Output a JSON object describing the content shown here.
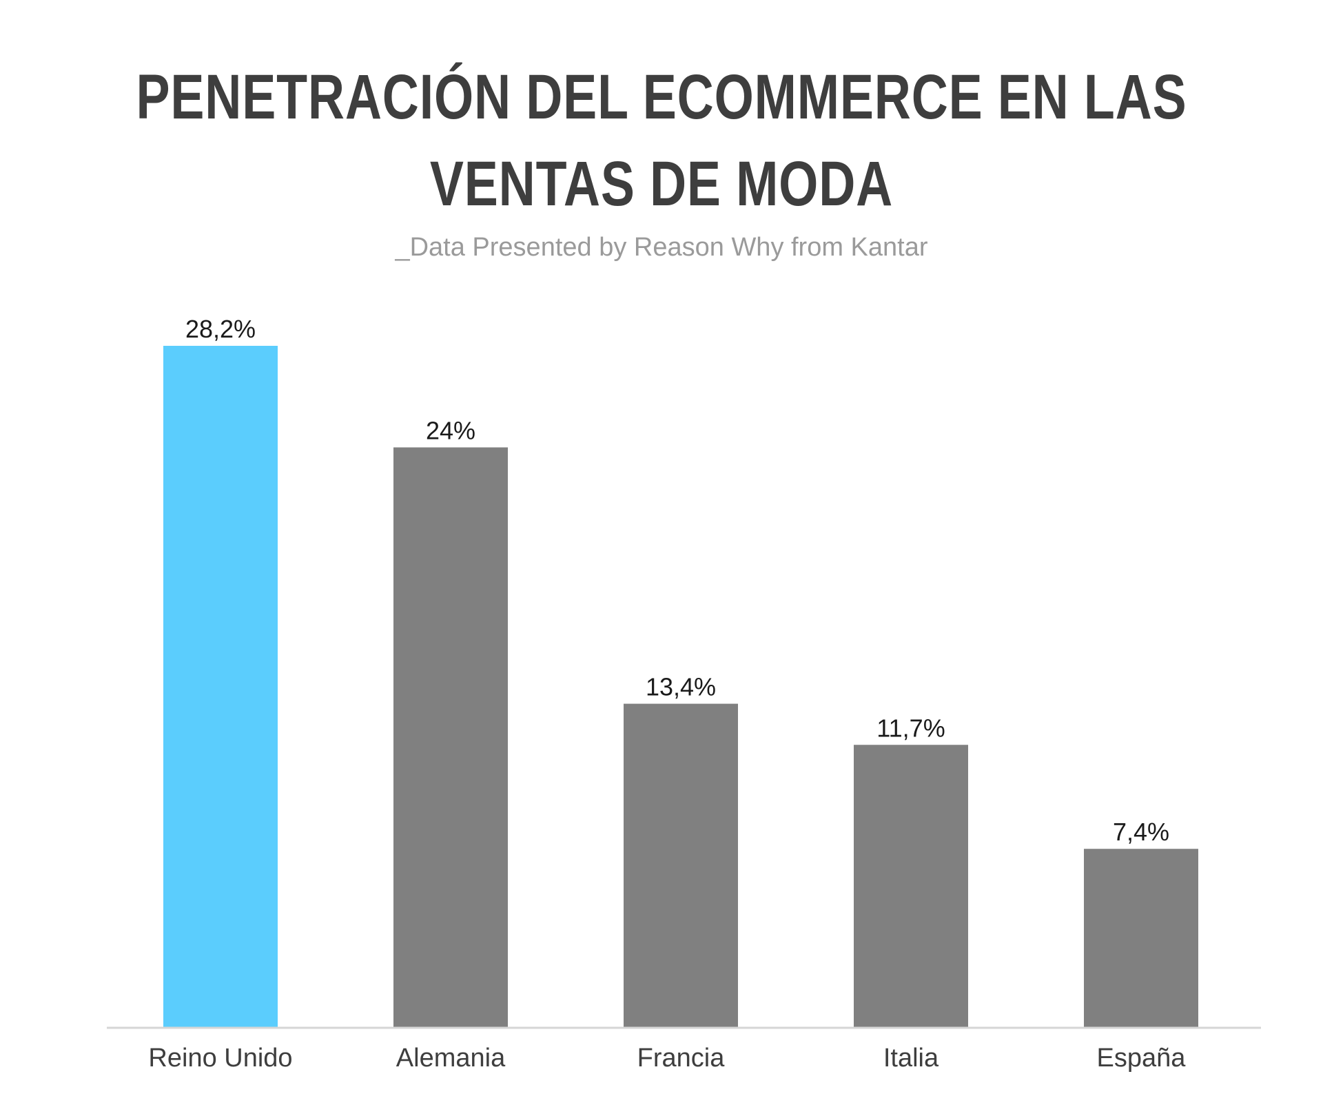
{
  "header": {
    "title_line1": "PENETRACIÓN DEL ECOMMERCE EN LAS",
    "title_line2": "VENTAS DE MODA",
    "subtitle": "_Data Presented by Reason Why from Kantar"
  },
  "colors": {
    "highlight": "#5bcdfd",
    "bar": "#808080",
    "baseline": "#d6d6d6",
    "title": "#3e3e3e",
    "subtitle": "#9a9a9a"
  },
  "chart_data": {
    "type": "bar",
    "title": "PENETRACIÓN DEL ECOMMERCE EN LAS VENTAS DE MODA",
    "subtitle": "_Data Presented by Reason Why from Kantar",
    "categories": [
      "Reino Unido",
      "Alemania",
      "Francia",
      "Italia",
      "España"
    ],
    "values": [
      28.2,
      24,
      13.4,
      11.7,
      7.4
    ],
    "value_labels": [
      "28,2%",
      "24%",
      "13,4%",
      "11,7%",
      "7,4%"
    ],
    "highlighted": [
      "Reino Unido"
    ],
    "xlabel": "",
    "ylabel": "",
    "ylim": [
      0,
      28.2
    ],
    "grid": false,
    "legend": "none"
  }
}
